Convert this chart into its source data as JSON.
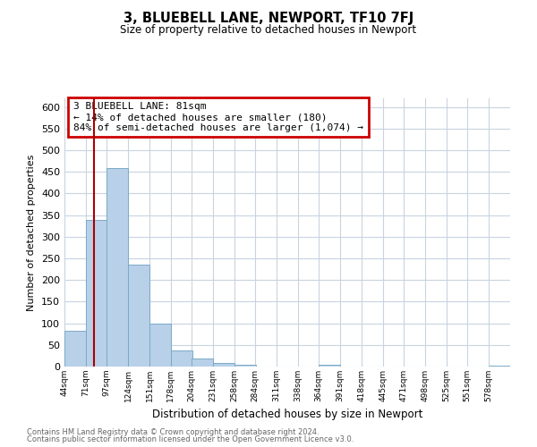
{
  "title": "3, BLUEBELL LANE, NEWPORT, TF10 7FJ",
  "subtitle": "Size of property relative to detached houses in Newport",
  "xlabel": "Distribution of detached houses by size in Newport",
  "ylabel": "Number of detached properties",
  "bar_color": "#b8d0e8",
  "bar_edge_color": "#7aaac8",
  "vline_x": 81,
  "vline_color": "#aa0000",
  "annotation_title": "3 BLUEBELL LANE: 81sqm",
  "annotation_line1": "← 14% of detached houses are smaller (180)",
  "annotation_line2": "84% of semi-detached houses are larger (1,074) →",
  "annotation_box_edge_color": "#cc0000",
  "bins_left_edges": [
    44,
    71,
    97,
    124,
    151,
    178,
    204,
    231,
    258,
    284,
    311,
    338,
    364,
    391,
    418,
    445,
    471,
    498,
    525,
    551,
    578
  ],
  "bin_width": 27,
  "bar_heights": [
    82,
    338,
    458,
    235,
    99,
    37,
    19,
    9,
    5,
    0,
    0,
    0,
    4,
    0,
    0,
    0,
    0,
    0,
    0,
    0,
    3
  ],
  "ylim": [
    0,
    620
  ],
  "yticks": [
    0,
    50,
    100,
    150,
    200,
    250,
    300,
    350,
    400,
    450,
    500,
    550,
    600
  ],
  "footnote1": "Contains HM Land Registry data © Crown copyright and database right 2024.",
  "footnote2": "Contains public sector information licensed under the Open Government Licence v3.0.",
  "bg_color": "#ffffff",
  "grid_color": "#c8d4e0",
  "tick_labels": [
    "44sqm",
    "71sqm",
    "97sqm",
    "124sqm",
    "151sqm",
    "178sqm",
    "204sqm",
    "231sqm",
    "258sqm",
    "284sqm",
    "311sqm",
    "338sqm",
    "364sqm",
    "391sqm",
    "418sqm",
    "445sqm",
    "471sqm",
    "498sqm",
    "525sqm",
    "551sqm",
    "578sqm"
  ]
}
